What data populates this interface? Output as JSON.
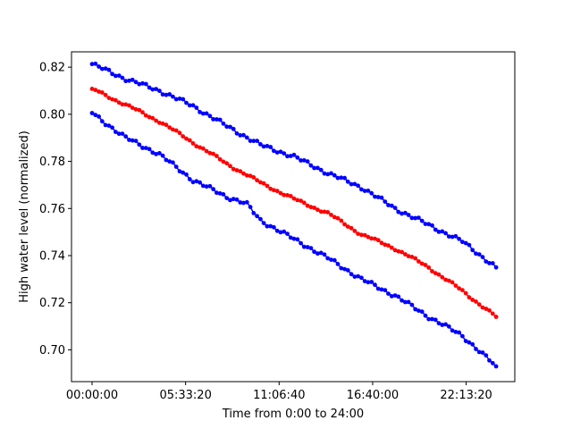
{
  "chart_data": {
    "type": "line",
    "xlabel": "Time from 0:00 to 24:00",
    "ylabel": "High water level (normalized)",
    "x_unit": "seconds",
    "xlim": [
      -4400,
      90400
    ],
    "ylim": [
      0.6865,
      0.8265
    ],
    "x_ticks": [
      {
        "value": 0,
        "label": "00:00:00"
      },
      {
        "value": 20000,
        "label": "05:33:20"
      },
      {
        "value": 40000,
        "label": "11:06:40"
      },
      {
        "value": 60000,
        "label": "16:40:00"
      },
      {
        "value": 80000,
        "label": "22:13:20"
      }
    ],
    "y_ticks": [
      {
        "value": 0.7,
        "label": "0.70"
      },
      {
        "value": 0.72,
        "label": "0.72"
      },
      {
        "value": 0.74,
        "label": "0.74"
      },
      {
        "value": 0.76,
        "label": "0.76"
      },
      {
        "value": 0.78,
        "label": "0.78"
      },
      {
        "value": 0.8,
        "label": "0.80"
      },
      {
        "value": 0.82,
        "label": "0.82"
      }
    ],
    "grid": false,
    "legend": "none",
    "series": [
      {
        "color": "#0000ff",
        "x": [
          0,
          7200,
          14400,
          21600,
          28800,
          36000,
          43200,
          50400,
          57600,
          64800,
          72000,
          79200,
          86400
        ],
        "y": [
          0.8213,
          0.815,
          0.81,
          0.8035,
          0.795,
          0.787,
          0.782,
          0.775,
          0.769,
          0.76,
          0.753,
          0.746,
          0.735
        ]
      },
      {
        "color": "#ff0000",
        "x": [
          0,
          7200,
          14400,
          21600,
          28800,
          36000,
          43200,
          50400,
          57600,
          64800,
          72000,
          79200,
          86400
        ],
        "y": [
          0.8108,
          0.804,
          0.797,
          0.788,
          0.779,
          0.771,
          0.764,
          0.758,
          0.749,
          0.743,
          0.735,
          0.725,
          0.714
        ]
      },
      {
        "color": "#0000ff",
        "x": [
          0,
          7200,
          14400,
          21600,
          28800,
          33000,
          36000,
          43200,
          50400,
          57600,
          64800,
          72000,
          79200,
          86400
        ],
        "y": [
          0.8005,
          0.79,
          0.783,
          0.772,
          0.765,
          0.762,
          0.755,
          0.747,
          0.739,
          0.73,
          0.723,
          0.714,
          0.706,
          0.693
        ]
      }
    ]
  }
}
